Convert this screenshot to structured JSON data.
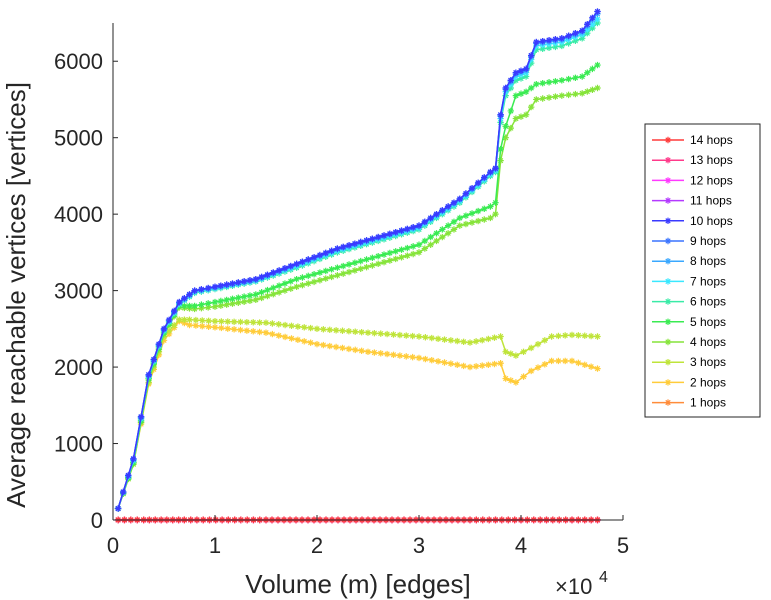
{
  "chart_data": {
    "type": "line",
    "title": "",
    "xlabel": "Volume (m) [edges]",
    "ylabel": "Average reachable vertices [vertices]",
    "x_multiplier_base": "×10",
    "x_multiplier_exp": "4",
    "xlim": [
      0,
      5
    ],
    "ylim": [
      0,
      6500
    ],
    "xticks": [
      0,
      1,
      2,
      3,
      4,
      5
    ],
    "yticks": [
      0,
      1000,
      2000,
      3000,
      4000,
      5000,
      6000
    ],
    "xtick_labels": [
      "0",
      "1",
      "2",
      "3",
      "4",
      "5"
    ],
    "ytick_labels": [
      "0",
      "1000",
      "2000",
      "3000",
      "4000",
      "5000",
      "6000"
    ],
    "legend_position": "right",
    "series": [
      {
        "name": "14 hops",
        "color": "#ff3a3a",
        "x": [
          0.05,
          0.3,
          0.7,
          1.5,
          2.5,
          3.5,
          4.0,
          4.5,
          4.75
        ],
        "y": [
          0,
          0,
          0,
          0,
          0,
          0,
          0,
          0,
          0
        ]
      },
      {
        "name": "13 hops",
        "color": "#ff3a8a",
        "x": [
          0.05,
          0.3,
          0.7,
          1.5,
          2.5,
          3.5,
          4.0,
          4.5,
          4.75
        ],
        "y": [
          0,
          0,
          0,
          0,
          0,
          0,
          0,
          0,
          0
        ]
      },
      {
        "name": "12 hops",
        "color": "#ff3aff",
        "x": [
          0.05,
          0.3,
          0.7,
          1.5,
          2.5,
          3.5,
          4.0,
          4.5,
          4.75
        ],
        "y": [
          0,
          0,
          0,
          0,
          0,
          0,
          0,
          0,
          0
        ]
      },
      {
        "name": "11 hops",
        "color": "#b43aff",
        "x": [
          0.05,
          0.3,
          0.7,
          1.5,
          2.5,
          3.5,
          4.0,
          4.5,
          4.75
        ],
        "y": [
          0,
          0,
          0,
          0,
          0,
          0,
          0,
          0,
          0
        ]
      },
      {
        "name": "10 hops",
        "color": "#3a3aff",
        "x": [
          0.05,
          0.2,
          0.35,
          0.5,
          0.65,
          0.8,
          1.0,
          1.4,
          1.8,
          2.2,
          2.6,
          3.0,
          3.4,
          3.7,
          3.75,
          3.8,
          3.85,
          3.95,
          4.05,
          4.15,
          4.4,
          4.6,
          4.75
        ],
        "y": [
          150,
          800,
          1900,
          2500,
          2850,
          3000,
          3050,
          3150,
          3350,
          3550,
          3700,
          3850,
          4200,
          4550,
          4600,
          5300,
          5650,
          5850,
          5900,
          6250,
          6300,
          6400,
          6650
        ]
      },
      {
        "name": "9 hops",
        "color": "#3a74ff",
        "x": [
          0.05,
          0.2,
          0.35,
          0.5,
          0.65,
          0.8,
          1.0,
          1.4,
          1.8,
          2.2,
          2.6,
          3.0,
          3.4,
          3.7,
          3.75,
          3.8,
          3.85,
          3.95,
          4.05,
          4.15,
          4.4,
          4.6,
          4.75
        ],
        "y": [
          150,
          800,
          1900,
          2500,
          2850,
          3000,
          3050,
          3150,
          3350,
          3550,
          3700,
          3850,
          4200,
          4550,
          4600,
          5300,
          5650,
          5850,
          5900,
          6250,
          6300,
          6400,
          6650
        ]
      },
      {
        "name": "8 hops",
        "color": "#3aa8ff",
        "x": [
          0.05,
          0.2,
          0.35,
          0.5,
          0.65,
          0.8,
          1.0,
          1.4,
          1.8,
          2.2,
          2.6,
          3.0,
          3.4,
          3.7,
          3.75,
          3.8,
          3.85,
          3.95,
          4.05,
          4.15,
          4.4,
          4.6,
          4.75
        ],
        "y": [
          150,
          790,
          1890,
          2490,
          2840,
          2990,
          3040,
          3140,
          3340,
          3540,
          3690,
          3840,
          4190,
          4540,
          4590,
          5280,
          5630,
          5830,
          5880,
          6230,
          6280,
          6380,
          6620
        ]
      },
      {
        "name": "7 hops",
        "color": "#3ae8ff",
        "x": [
          0.05,
          0.2,
          0.35,
          0.5,
          0.65,
          0.8,
          1.0,
          1.4,
          1.8,
          2.2,
          2.6,
          3.0,
          3.4,
          3.7,
          3.75,
          3.8,
          3.85,
          3.95,
          4.05,
          4.15,
          4.4,
          4.6,
          4.75
        ],
        "y": [
          150,
          780,
          1880,
          2480,
          2830,
          2980,
          3030,
          3130,
          3320,
          3520,
          3670,
          3820,
          4170,
          4520,
          4570,
          5250,
          5600,
          5800,
          5850,
          6200,
          6250,
          6350,
          6550
        ]
      },
      {
        "name": "6 hops",
        "color": "#3aeba7",
        "x": [
          0.05,
          0.2,
          0.35,
          0.5,
          0.65,
          0.8,
          1.0,
          1.4,
          1.8,
          2.2,
          2.6,
          3.0,
          3.4,
          3.7,
          3.75,
          3.8,
          3.85,
          3.95,
          4.05,
          4.15,
          4.4,
          4.6,
          4.75
        ],
        "y": [
          150,
          770,
          1870,
          2470,
          2820,
          2970,
          3020,
          3120,
          3300,
          3500,
          3650,
          3800,
          4150,
          4500,
          4550,
          5200,
          5550,
          5750,
          5800,
          6150,
          6200,
          6300,
          6500
        ]
      },
      {
        "name": "5 hops",
        "color": "#3aeb52",
        "x": [
          0.05,
          0.2,
          0.35,
          0.5,
          0.65,
          0.8,
          1.0,
          1.4,
          1.8,
          2.2,
          2.6,
          3.0,
          3.4,
          3.7,
          3.75,
          3.8,
          3.85,
          3.95,
          4.05,
          4.15,
          4.4,
          4.6,
          4.75
        ],
        "y": [
          150,
          750,
          1850,
          2450,
          2800,
          2800,
          2850,
          2950,
          3150,
          3300,
          3450,
          3600,
          3950,
          4100,
          4150,
          4850,
          5150,
          5550,
          5600,
          5700,
          5750,
          5800,
          5950
        ]
      },
      {
        "name": "4 hops",
        "color": "#86e43a",
        "x": [
          0.05,
          0.2,
          0.35,
          0.5,
          0.65,
          0.8,
          1.0,
          1.4,
          1.8,
          2.2,
          2.6,
          3.0,
          3.4,
          3.7,
          3.75,
          3.8,
          3.85,
          3.95,
          4.05,
          4.15,
          4.4,
          4.6,
          4.75
        ],
        "y": [
          150,
          730,
          1830,
          2430,
          2780,
          2760,
          2790,
          2880,
          3050,
          3200,
          3350,
          3500,
          3850,
          3950,
          4000,
          4700,
          5000,
          5250,
          5300,
          5500,
          5550,
          5580,
          5650
        ]
      },
      {
        "name": "3 hops",
        "color": "#bfe43a",
        "x": [
          0.05,
          0.2,
          0.35,
          0.5,
          0.65,
          0.75,
          1.0,
          1.5,
          2.0,
          2.5,
          3.0,
          3.5,
          3.8,
          3.85,
          3.95,
          4.1,
          4.3,
          4.5,
          4.75
        ],
        "y": [
          150,
          750,
          1800,
          2400,
          2620,
          2620,
          2600,
          2580,
          2500,
          2450,
          2400,
          2320,
          2400,
          2200,
          2150,
          2250,
          2400,
          2420,
          2400
        ]
      },
      {
        "name": "2 hops",
        "color": "#ffcc3a",
        "x": [
          0.05,
          0.2,
          0.35,
          0.5,
          0.65,
          0.75,
          1.0,
          1.5,
          2.0,
          2.5,
          3.0,
          3.5,
          3.8,
          3.85,
          3.95,
          4.1,
          4.3,
          4.5,
          4.75
        ],
        "y": [
          150,
          730,
          1780,
          2350,
          2600,
          2550,
          2520,
          2450,
          2300,
          2200,
          2120,
          2000,
          2050,
          1850,
          1800,
          1950,
          2080,
          2080,
          1980
        ]
      },
      {
        "name": "1 hops",
        "color": "#ff8c3a",
        "x": [
          0.05,
          0.3,
          0.7,
          1.5,
          2.5,
          3.5,
          4.0,
          4.5,
          4.75
        ],
        "y": [
          5,
          5,
          5,
          5,
          5,
          5,
          5,
          5,
          5
        ]
      }
    ]
  }
}
